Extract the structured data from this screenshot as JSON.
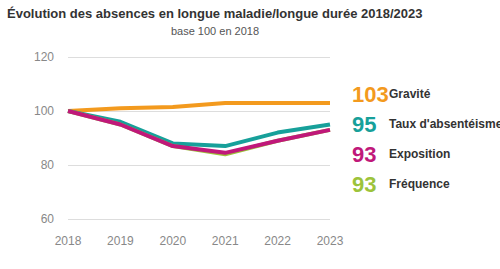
{
  "chart_data": {
    "type": "line",
    "title": "Évolution des absences en longue maladie/longue durée 2018/2023",
    "subtitle": "base 100 en 2018",
    "categories": [
      "2018",
      "2019",
      "2020",
      "2021",
      "2022",
      "2023"
    ],
    "series": [
      {
        "name": "Gravité",
        "color": "#f39a1e",
        "values": [
          100,
          101,
          101.5,
          103,
          103,
          103
        ]
      },
      {
        "name": "Taux d'absentéisme",
        "color": "#17a09a",
        "values": [
          100,
          96,
          88,
          87,
          92,
          95
        ]
      },
      {
        "name": "Exposition",
        "color": "#c0187a",
        "values": [
          100,
          95,
          87,
          84.5,
          89,
          93
        ]
      },
      {
        "name": "Fréquence",
        "color": "#9cc33b",
        "values": [
          100,
          95,
          87,
          84,
          89,
          93
        ]
      }
    ],
    "ylim": [
      60,
      120
    ],
    "yticks": [
      60,
      80,
      100,
      120
    ],
    "grid": true,
    "legend": "right"
  }
}
